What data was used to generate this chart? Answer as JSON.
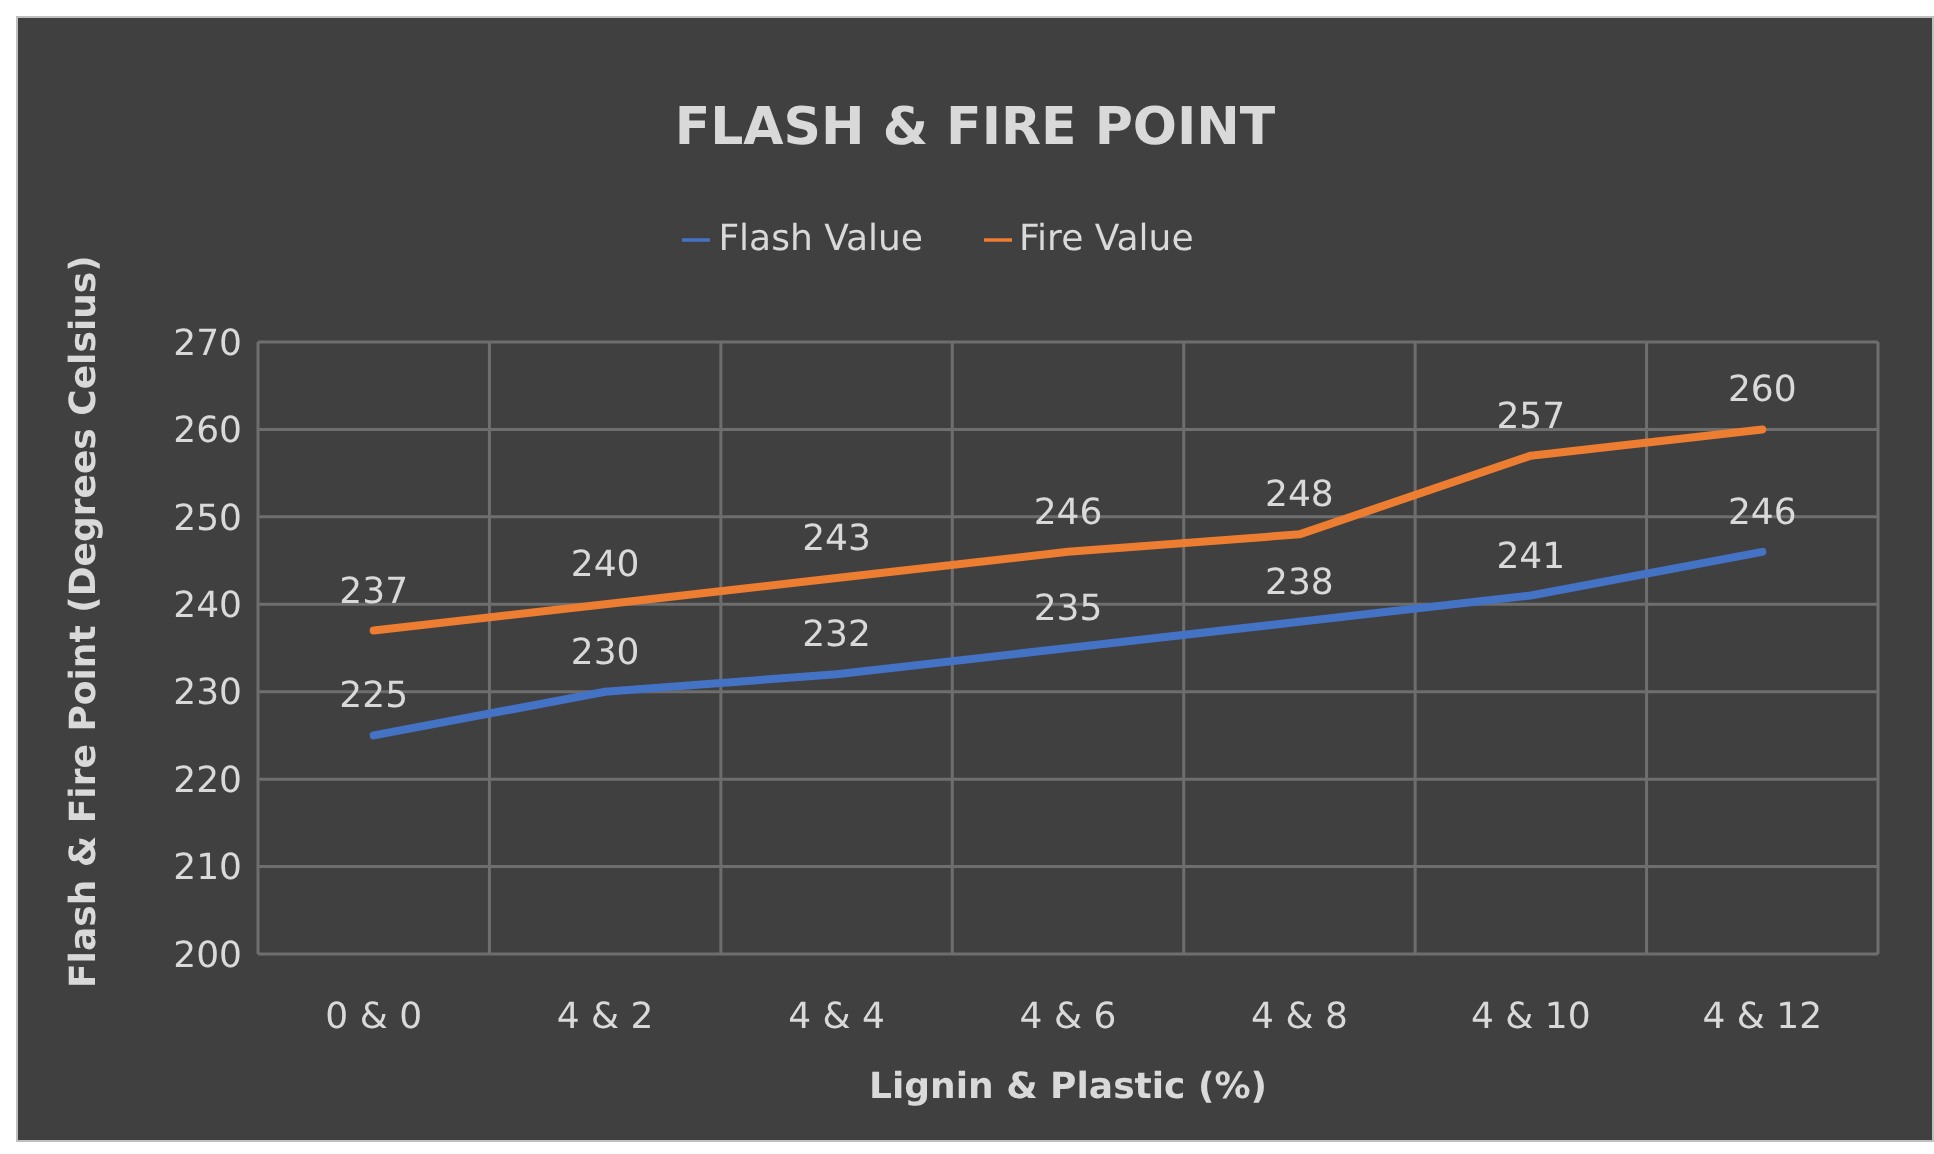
{
  "chart_data": {
    "type": "line",
    "title": "FLASH & FIRE POINT",
    "xlabel": "Lignin & Plastic (%)",
    "ylabel": "Flash & Fire Point (Degrees Celsius)",
    "categories": [
      "0 & 0",
      "4 & 2",
      "4 & 4",
      "4 & 6",
      "4 & 8",
      "4 & 10",
      "4 & 12"
    ],
    "series": [
      {
        "name": "Flash Value",
        "color": "#4472c4",
        "values": [
          225,
          230,
          232,
          235,
          238,
          241,
          246
        ]
      },
      {
        "name": "Fire Value",
        "color": "#ed7d31",
        "values": [
          237,
          240,
          243,
          246,
          248,
          257,
          260
        ]
      }
    ],
    "ylim": [
      200,
      270
    ],
    "yticks": [
      200,
      210,
      220,
      230,
      240,
      250,
      260,
      270
    ],
    "grid": true,
    "legend": "top",
    "data_labels": true,
    "marker": "none",
    "line_style": "solid"
  }
}
